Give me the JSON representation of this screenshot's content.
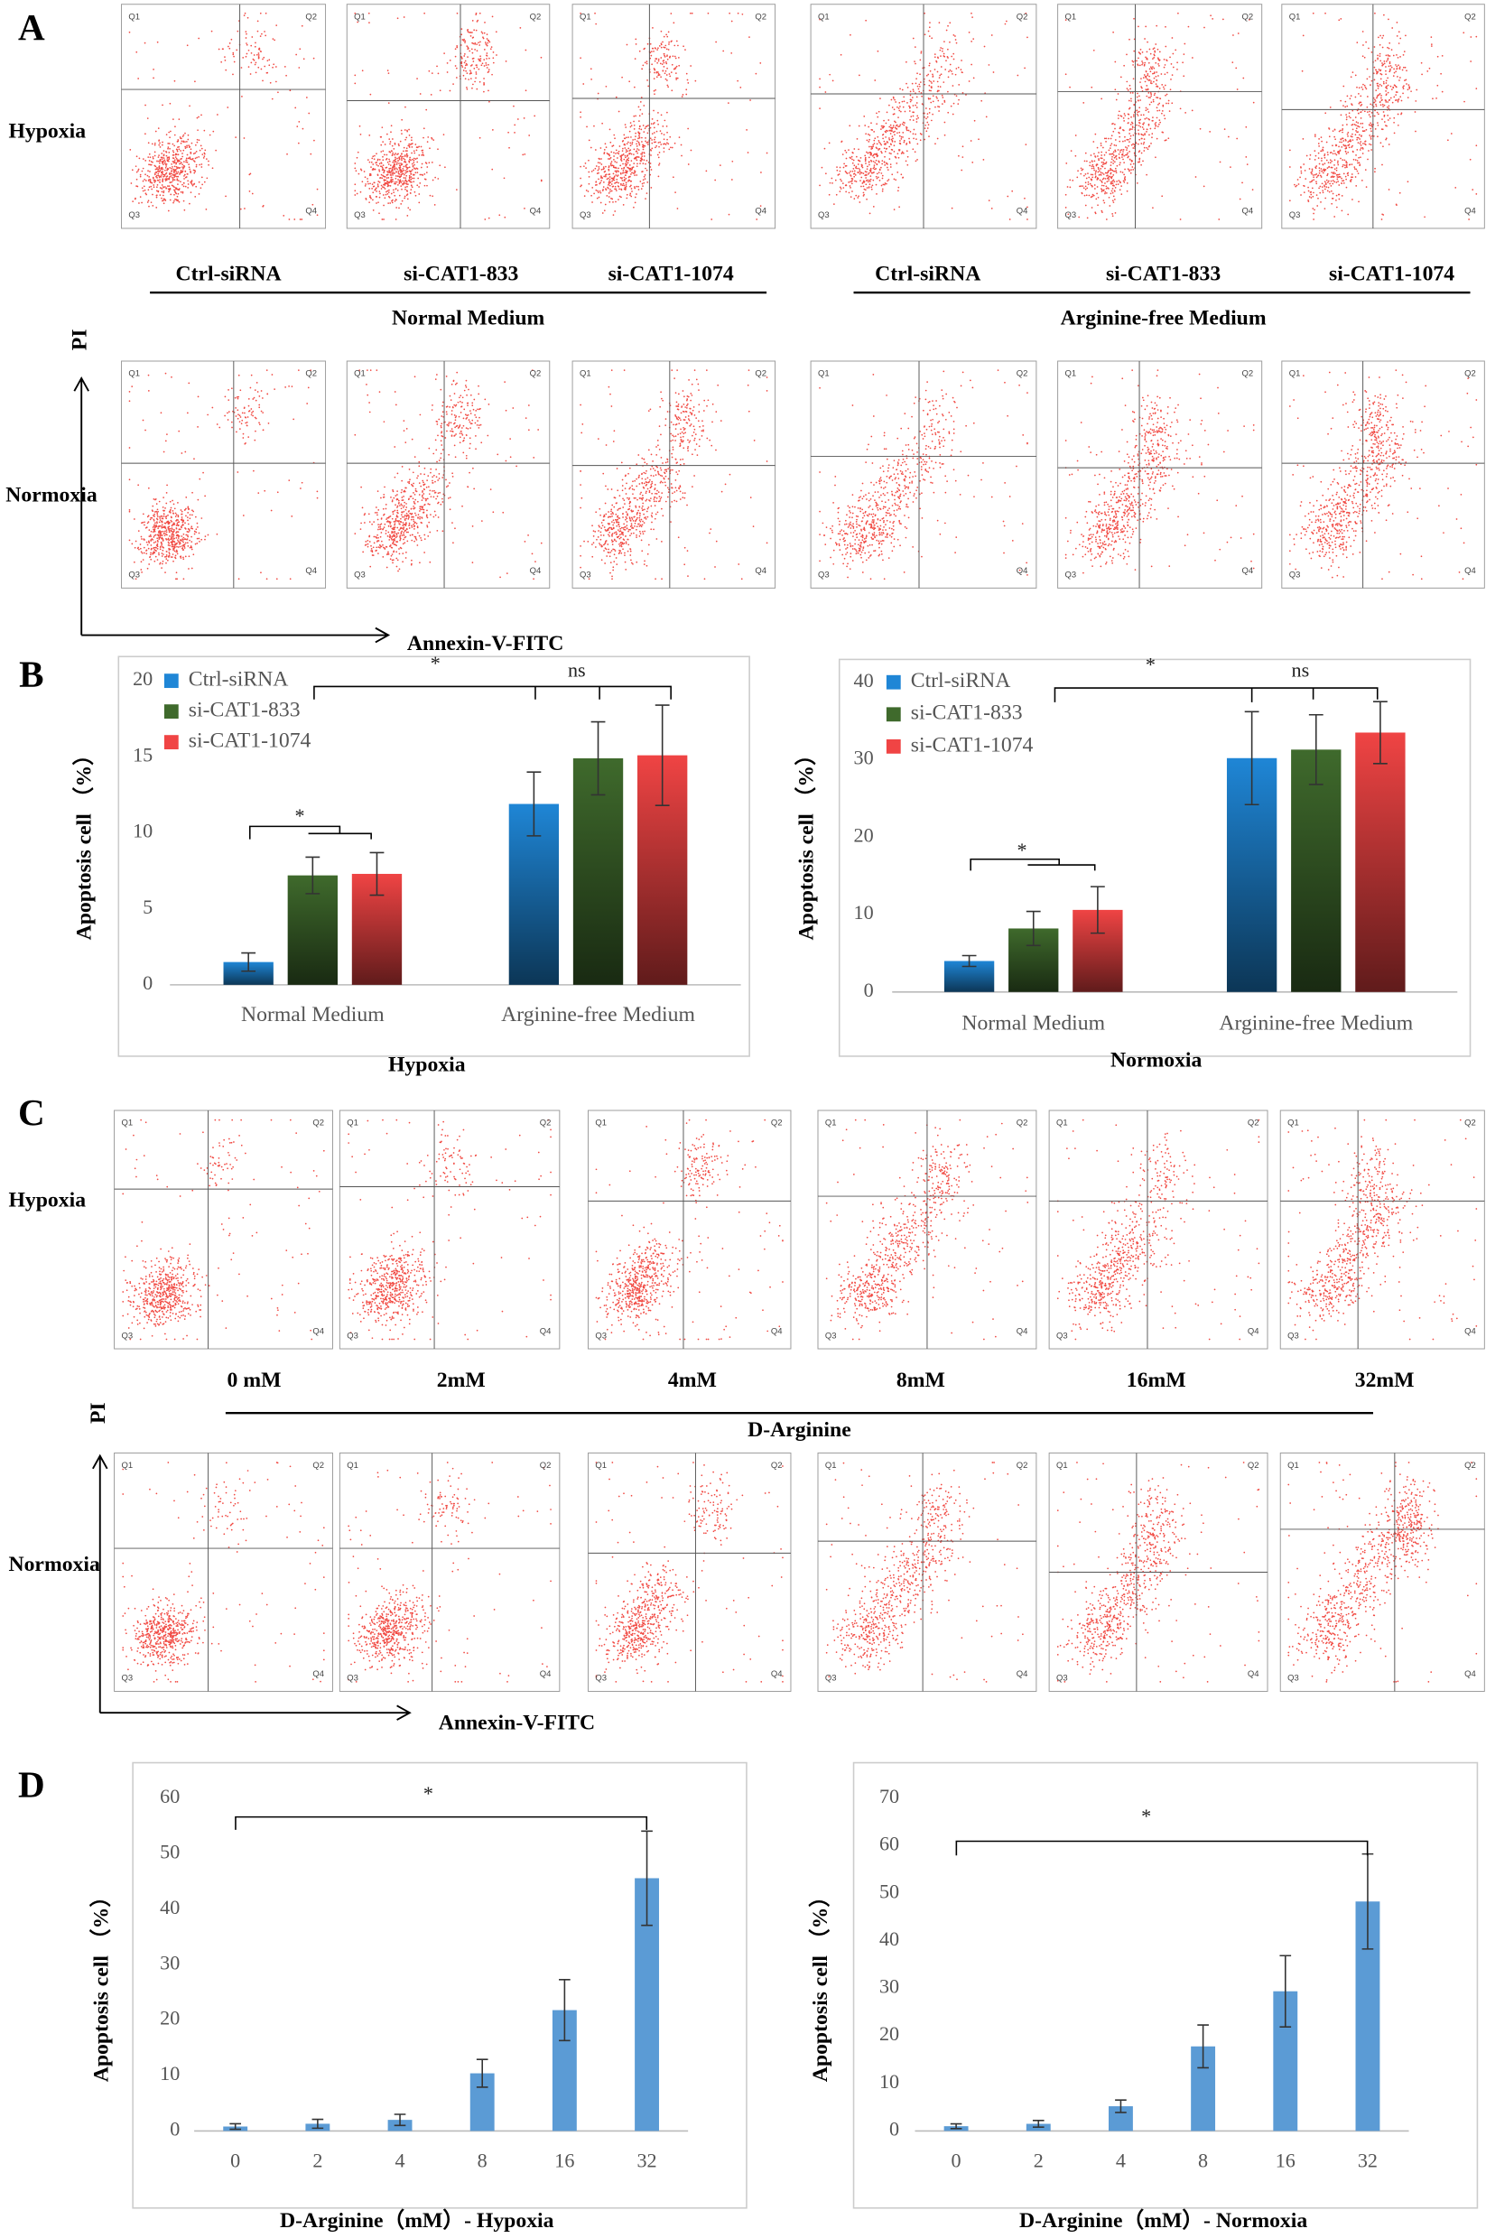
{
  "panel_a": {
    "label": "A",
    "rows": [
      "Hypoxia",
      "Normoxia"
    ],
    "columns": [
      "Ctrl-siRNA",
      "si-CAT1-833",
      "si-CAT1-1074",
      "Ctrl-siRNA",
      "si-CAT1-833",
      "si-CAT1-1074"
    ],
    "groups": [
      "Normal Medium",
      "Arginine-free Medium"
    ],
    "y_axis": "PI",
    "x_axis": "Annexin-V-FITC",
    "quadrants": [
      "Q1",
      "Q2",
      "Q3",
      "Q4"
    ]
  },
  "panel_b": {
    "label": "B"
  },
  "panel_c": {
    "label": "C",
    "rows": [
      "Hypoxia",
      "Normoxia"
    ],
    "columns": [
      "0 mM",
      "2mM",
      "4mM",
      "8mM",
      "16mM",
      "32mM"
    ],
    "group": "D-Arginine",
    "y_axis": "PI",
    "x_axis": "Annexin-V-FITC",
    "quadrants": [
      "Q1",
      "Q2",
      "Q3",
      "Q4"
    ]
  },
  "panel_d": {
    "label": "D"
  },
  "chart_data": [
    {
      "type": "bar",
      "title": "Hypoxia",
      "y_label": "Apoptosis cell （%）",
      "categories": [
        "Normal Medium",
        "Arginine-free Medium"
      ],
      "series": [
        {
          "name": "Ctrl-siRNA",
          "color": "#1f86d6",
          "values": [
            1.5,
            11.9
          ],
          "errors": [
            0.6,
            2.1
          ]
        },
        {
          "name": "si-CAT1-833",
          "color": "#3f6a2c",
          "values": [
            7.2,
            14.9
          ],
          "errors": [
            1.2,
            2.4
          ]
        },
        {
          "name": "si-CAT1-1074",
          "color": "#f04444",
          "values": [
            7.3,
            15.1
          ],
          "errors": [
            1.4,
            3.3
          ]
        }
      ],
      "ylim": [
        0,
        20
      ],
      "yticks": [
        0,
        5,
        10,
        15,
        20
      ],
      "grid": false,
      "annotations": [
        "*",
        "ns",
        "*"
      ]
    },
    {
      "type": "bar",
      "title": "Normoxia",
      "y_label": "Apoptosis cell （%）",
      "categories": [
        "Normal Medium",
        "Arginine-free Medium"
      ],
      "series": [
        {
          "name": "Ctrl-siRNA",
          "color": "#1f86d6",
          "values": [
            4.0,
            30.2
          ],
          "errors": [
            0.7,
            6.0
          ]
        },
        {
          "name": "si-CAT1-833",
          "color": "#3f6a2c",
          "values": [
            8.2,
            31.3
          ],
          "errors": [
            2.2,
            4.5
          ]
        },
        {
          "name": "si-CAT1-1074",
          "color": "#f04444",
          "values": [
            10.6,
            33.5
          ],
          "errors": [
            3.0,
            4.0
          ]
        }
      ],
      "ylim": [
        0,
        40
      ],
      "yticks": [
        0,
        10,
        20,
        30,
        40
      ],
      "grid": false,
      "annotations": [
        "*",
        "ns",
        "*"
      ]
    },
    {
      "type": "bar",
      "x_label": "D-Arginine（mM）- Hypoxia",
      "y_label": "Apoptosis cell （%）",
      "categories": [
        "0",
        "2",
        "4",
        "8",
        "16",
        "32"
      ],
      "color": "#5b9bd5",
      "values": [
        0.8,
        1.3,
        2.0,
        10.4,
        21.8,
        45.6
      ],
      "errors": [
        0.5,
        0.8,
        1.0,
        2.5,
        5.5,
        8.5
      ],
      "ylim": [
        0,
        60
      ],
      "yticks": [
        0,
        10,
        20,
        30,
        40,
        50,
        60
      ],
      "grid": false,
      "annotations": [
        "*"
      ]
    },
    {
      "type": "bar",
      "x_label": "D-Arginine（mM）- Normoxia",
      "y_label": "Apoptosis cell （%）",
      "categories": [
        "0",
        "2",
        "4",
        "8",
        "16",
        "32"
      ],
      "color": "#5b9bd5",
      "values": [
        1.0,
        1.5,
        5.2,
        17.8,
        29.4,
        48.3
      ],
      "errors": [
        0.5,
        0.7,
        1.3,
        4.5,
        7.5,
        10.0
      ],
      "ylim": [
        0,
        70
      ],
      "yticks": [
        0,
        10,
        20,
        30,
        40,
        50,
        60,
        70
      ],
      "grid": false,
      "annotations": [
        "*"
      ]
    }
  ]
}
